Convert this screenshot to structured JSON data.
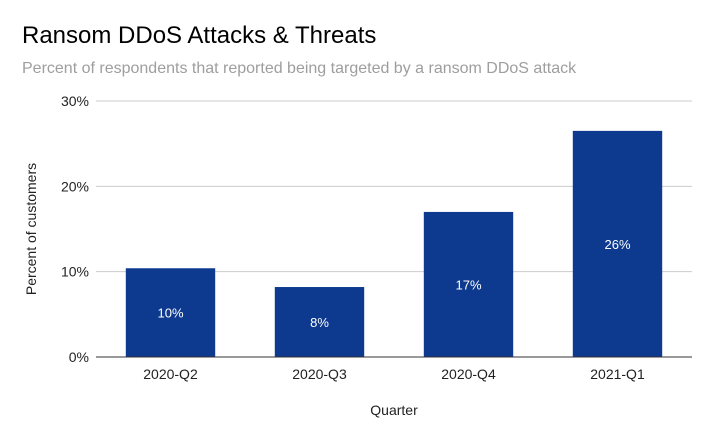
{
  "chart_data": {
    "type": "bar",
    "title": "Ransom DDoS Attacks & Threats",
    "subtitle": "Percent of respondents that reported being targeted by a ransom DDoS attack",
    "xlabel": "Quarter",
    "ylabel": "Percent of customers",
    "categories": [
      "2020-Q2",
      "2020-Q3",
      "2020-Q4",
      "2021-Q1"
    ],
    "values": [
      10.4,
      8.2,
      17,
      26.5
    ],
    "data_labels": [
      "10%",
      "8%",
      "17%",
      "26%"
    ],
    "ylim": [
      0,
      30
    ],
    "yticks": [
      0,
      10,
      20,
      30
    ],
    "ytick_labels": [
      "0%",
      "10%",
      "20%",
      "30%"
    ],
    "grid": true,
    "legend": "none",
    "bar_color": "#0d3a8e",
    "grid_color": "#cccccc",
    "axis_color": "#333333"
  }
}
